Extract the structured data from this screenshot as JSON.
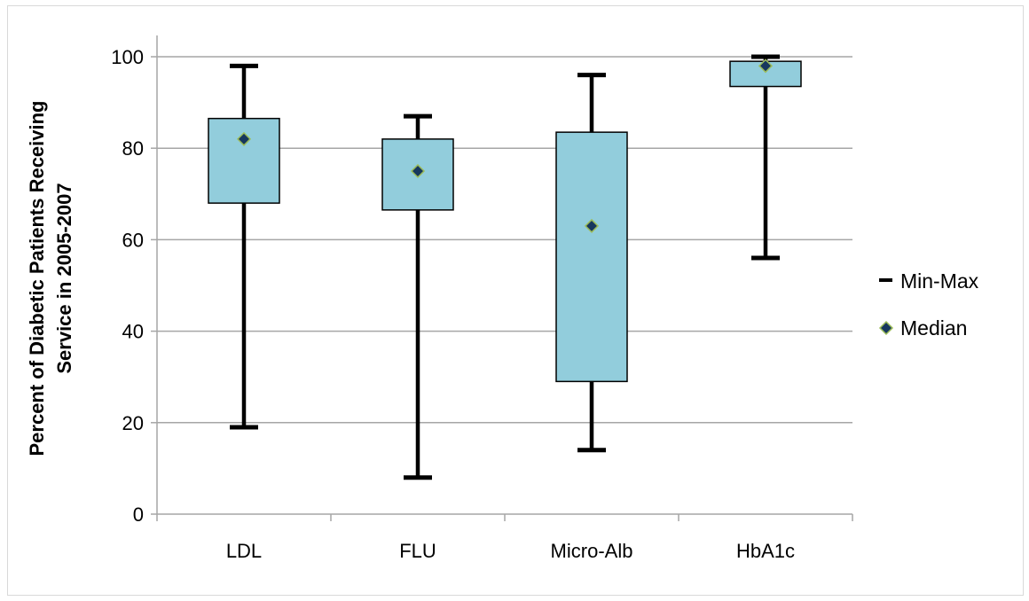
{
  "chart_data": {
    "type": "box",
    "title": "",
    "xlabel": "",
    "ylabel_lines": [
      "Percent of Diabetic Patients Receiving",
      "Service in 2005-2007"
    ],
    "ylim": [
      0,
      100
    ],
    "yticks": [
      0,
      20,
      40,
      60,
      80,
      100
    ],
    "categories": [
      "LDL",
      "FLU",
      "Micro-Alb",
      "HbA1c"
    ],
    "series": [
      {
        "category": "LDL",
        "min": 19,
        "q1": 68,
        "median": 82,
        "q3": 86.5,
        "max": 98
      },
      {
        "category": "FLU",
        "min": 8,
        "q1": 66.5,
        "median": 75,
        "q3": 82,
        "max": 87
      },
      {
        "category": "Micro-Alb",
        "min": 14,
        "q1": 29,
        "median": 63,
        "q3": 83.5,
        "max": 96
      },
      {
        "category": "HbA1c",
        "min": 56,
        "q1": 93.5,
        "median": 98,
        "q3": 99,
        "max": 100
      }
    ],
    "legend": {
      "position": "right",
      "items": [
        {
          "key": "minmax",
          "label": "Min-Max"
        },
        {
          "key": "median",
          "label": "Median"
        }
      ]
    },
    "grid": true,
    "colors": {
      "box_fill": "#92cddc",
      "box_stroke": "#000000",
      "whisker": "#000000",
      "median_fill": "#17375e",
      "median_stroke": "#9bbb59",
      "grid": "#a6a6a6",
      "axis": "#a6a6a6"
    }
  }
}
